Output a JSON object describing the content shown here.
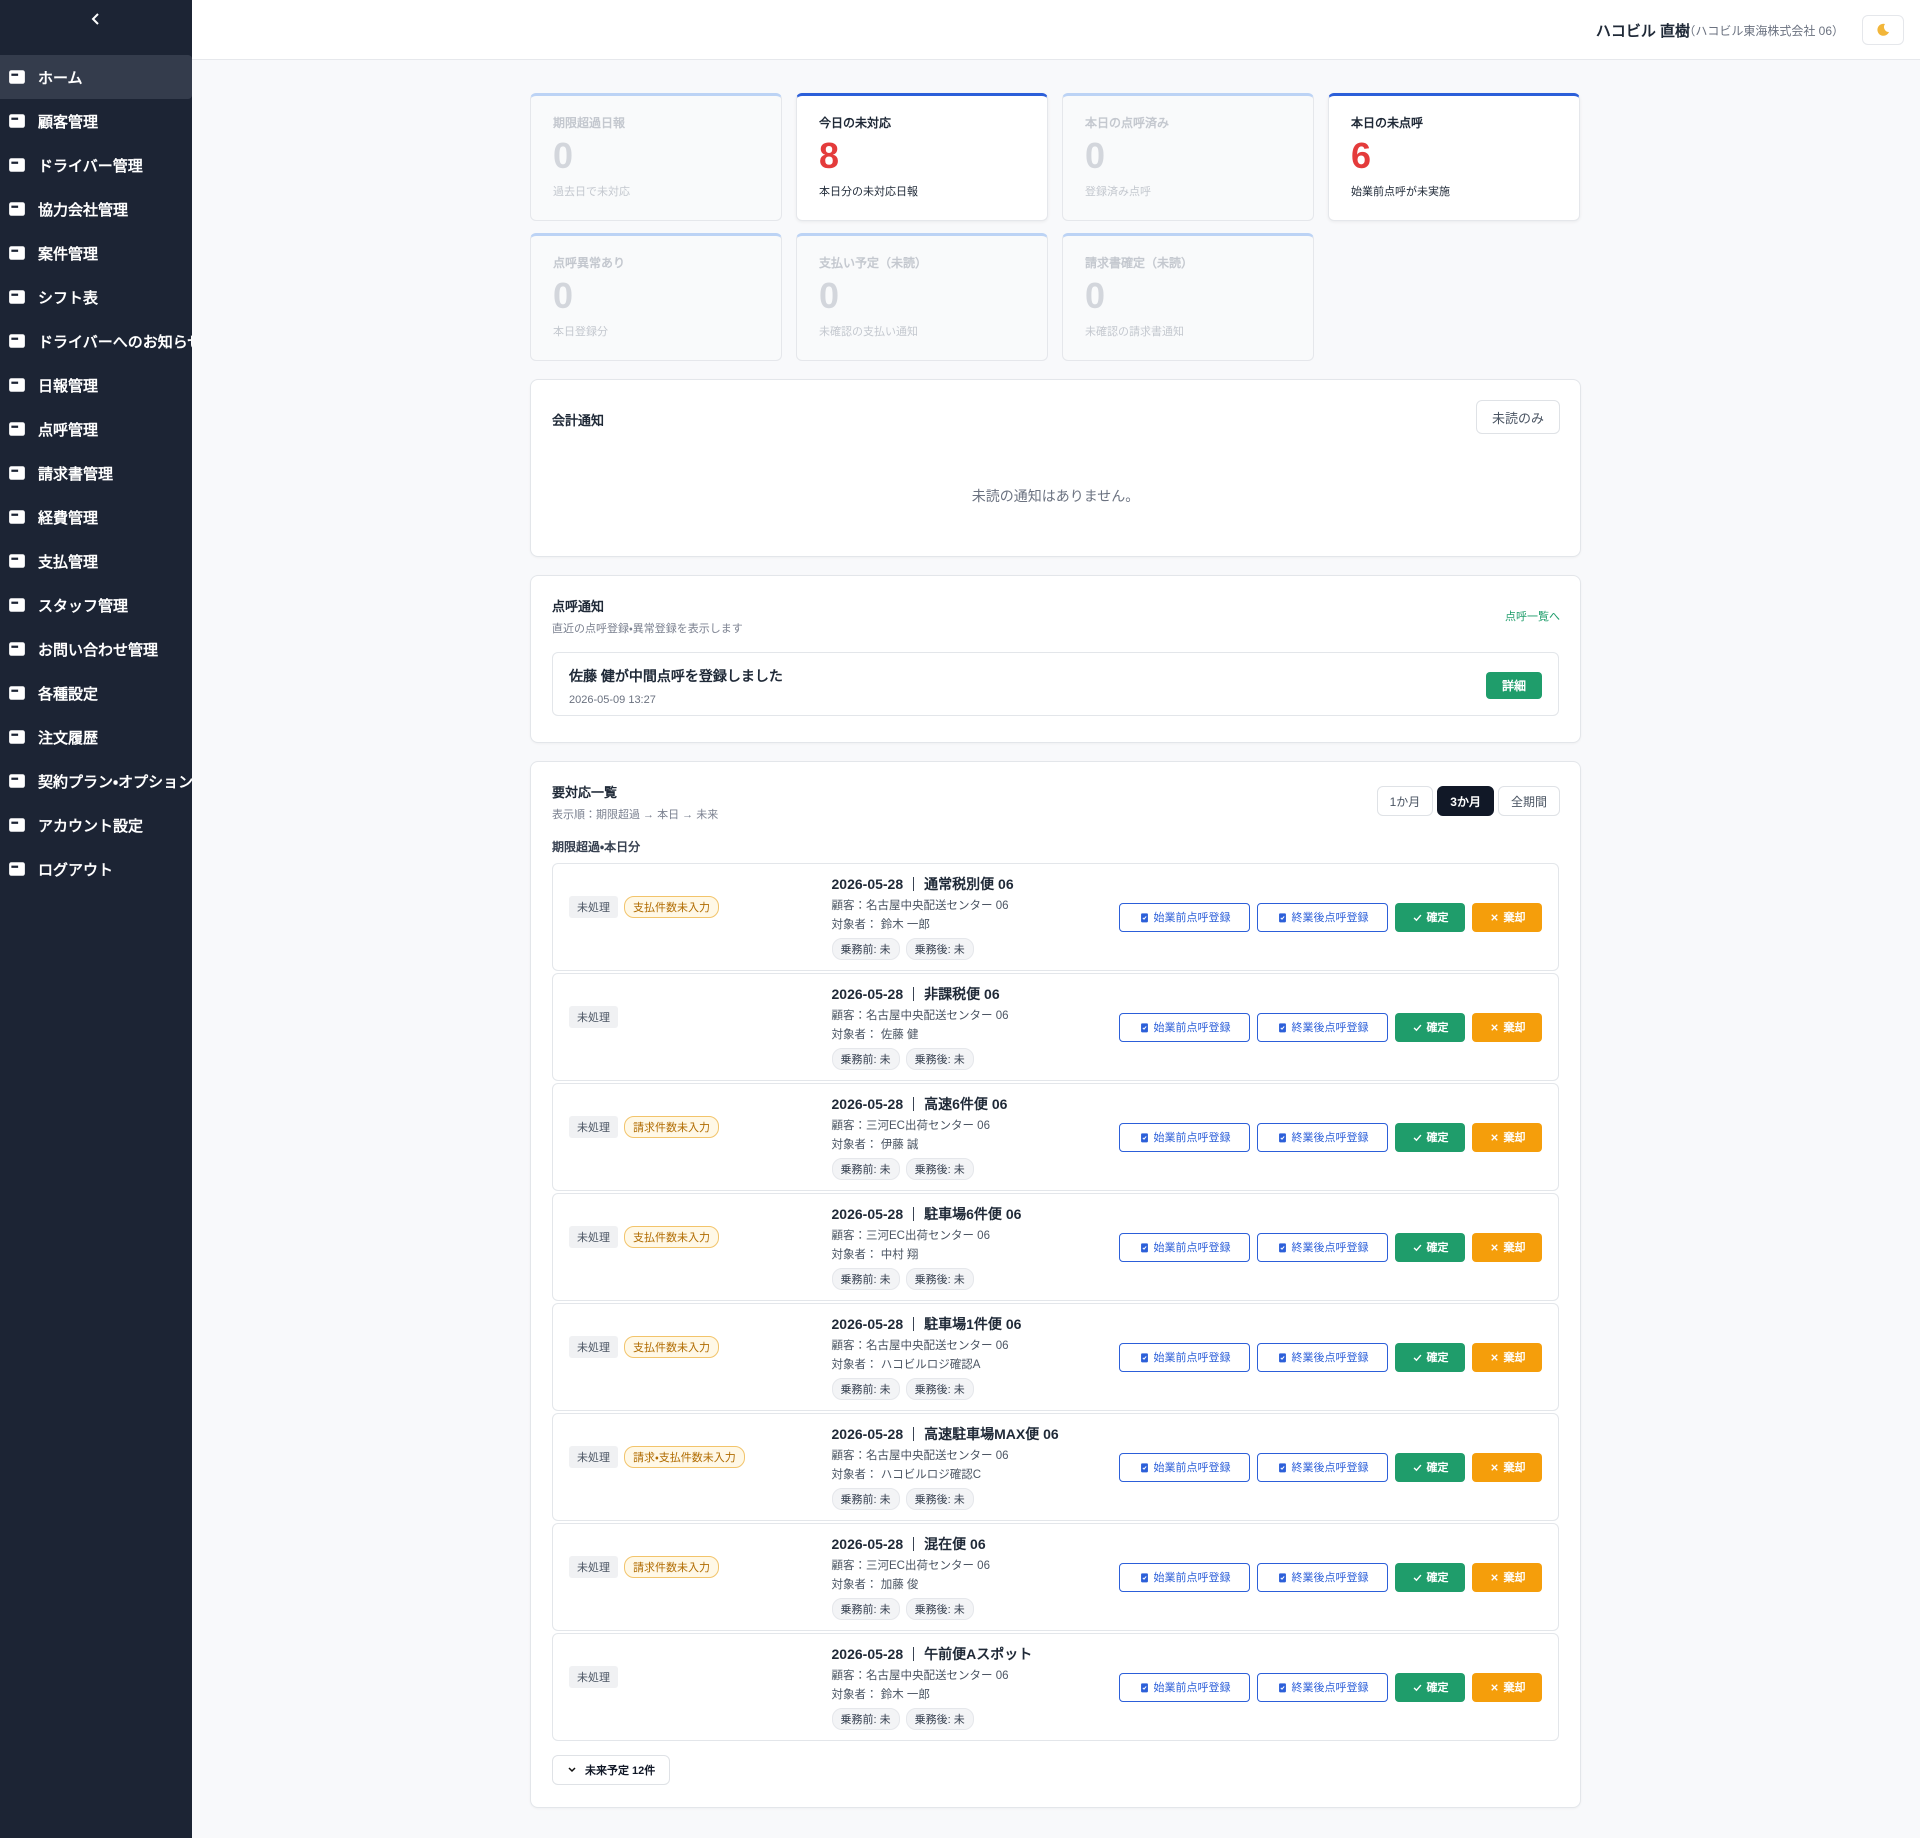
{
  "sidebar": {
    "active": 0,
    "items": [
      "ホーム",
      "顧客管理",
      "ドライバー管理",
      "協力会社管理",
      "案件管理",
      "シフト表",
      "ドライバーへのお知らせ",
      "日報管理",
      "点呼管理",
      "請求書管理",
      "経費管理",
      "支払管理",
      "スタッフ管理",
      "お問い合わせ管理",
      "各種設定",
      "注文履歴",
      "契約プラン・オプション",
      "アカウント設定",
      "ログアウト"
    ]
  },
  "header": {
    "user": "ハコビル 直樹",
    "company": "（ハコビル東海株式会社 06）"
  },
  "stats": [
    {
      "label": "期限超過日報",
      "value": 0,
      "note": "過去日で未対応",
      "highlight": false
    },
    {
      "label": "今日の未対応",
      "value": 8,
      "note": "本日分の未対応日報",
      "highlight": true
    },
    {
      "label": "本日の点呼済み",
      "value": 0,
      "note": "登録済み点呼",
      "highlight": false
    },
    {
      "label": "本日の未点呼",
      "value": 6,
      "note": "始業前点呼が未実施",
      "highlight": true
    },
    {
      "label": "点呼異常あり",
      "value": 0,
      "note": "本日登録分",
      "highlight": false
    },
    {
      "label": "支払い予定（未読）",
      "value": 0,
      "note": "未確認の支払い通知",
      "highlight": false
    },
    {
      "label": "請求書確定（未読）",
      "value": 0,
      "note": "未確認の請求書通知",
      "highlight": false
    }
  ],
  "accounting": {
    "title": "会計通知",
    "filter": "未読のみ",
    "empty": "未読の通知はありません。"
  },
  "rollcall": {
    "title": "点呼通知",
    "subtitle": "直近の点呼登録・異常登録を表示します",
    "link": "点呼一覧へ",
    "items": [
      {
        "text": "佐藤 健が中間点呼を登録しました",
        "time": "2026-05-09 13:27",
        "button": "詳細"
      }
    ]
  },
  "tasks": {
    "title": "要対応一覧",
    "subtitle": "表示順：期限超過 → 本日 → 未来",
    "periods": [
      "1か月",
      "3か月",
      "全期間"
    ],
    "active_period": 1,
    "section": "期限超過・本日分",
    "buttons": [
      "始業前点呼登録",
      "終業後点呼登録",
      "確定",
      "棄却"
    ],
    "rows": [
      {
        "status": "未処理",
        "tag": "支払件数未入力",
        "date": "2026-05-28",
        "title": "通常税別便 06",
        "customer": "顧客：名古屋中央配送センター 06",
        "target": "対象者： 鈴木 一郎",
        "pre": "乗務前: 未",
        "post": "乗務後: 未"
      },
      {
        "status": "未処理",
        "date": "2026-05-28",
        "title": "非課税便 06",
        "customer": "顧客：名古屋中央配送センター 06",
        "target": "対象者： 佐藤 健",
        "pre": "乗務前: 未",
        "post": "乗務後: 未"
      },
      {
        "status": "未処理",
        "tag": "請求件数未入力",
        "date": "2026-05-28",
        "title": "高速6件便 06",
        "customer": "顧客：三河EC出荷センター 06",
        "target": "対象者： 伊藤 誠",
        "pre": "乗務前: 未",
        "post": "乗務後: 未"
      },
      {
        "status": "未処理",
        "tag": "支払件数未入力",
        "date": "2026-05-28",
        "title": "駐車場6件便 06",
        "customer": "顧客：三河EC出荷センター 06",
        "target": "対象者： 中村 翔",
        "pre": "乗務前: 未",
        "post": "乗務後: 未"
      },
      {
        "status": "未処理",
        "tag": "支払件数未入力",
        "date": "2026-05-28",
        "title": "駐車場1件便 06",
        "customer": "顧客：名古屋中央配送センター 06",
        "target": "対象者： ハコビルロジ確認A",
        "pre": "乗務前: 未",
        "post": "乗務後: 未"
      },
      {
        "status": "未処理",
        "tag": "請求・支払件数未入力",
        "date": "2026-05-28",
        "title": "高速駐車場MAX便 06",
        "customer": "顧客：名古屋中央配送センター 06",
        "target": "対象者： ハコビルロジ確認C",
        "pre": "乗務前: 未",
        "post": "乗務後: 未"
      },
      {
        "status": "未処理",
        "tag": "請求件数未入力",
        "date": "2026-05-28",
        "title": "混在便 06",
        "customer": "顧客：三河EC出荷センター 06",
        "target": "対象者： 加藤 俊",
        "pre": "乗務前: 未",
        "post": "乗務後: 未"
      },
      {
        "status": "未処理",
        "date": "2026-05-28",
        "title": "午前便Aスポット",
        "customer": "顧客：名古屋中央配送センター 06",
        "target": "対象者： 鈴木 一郎",
        "pre": "乗務前: 未",
        "post": "乗務後: 未"
      }
    ],
    "more": "未来予定 12件"
  }
}
